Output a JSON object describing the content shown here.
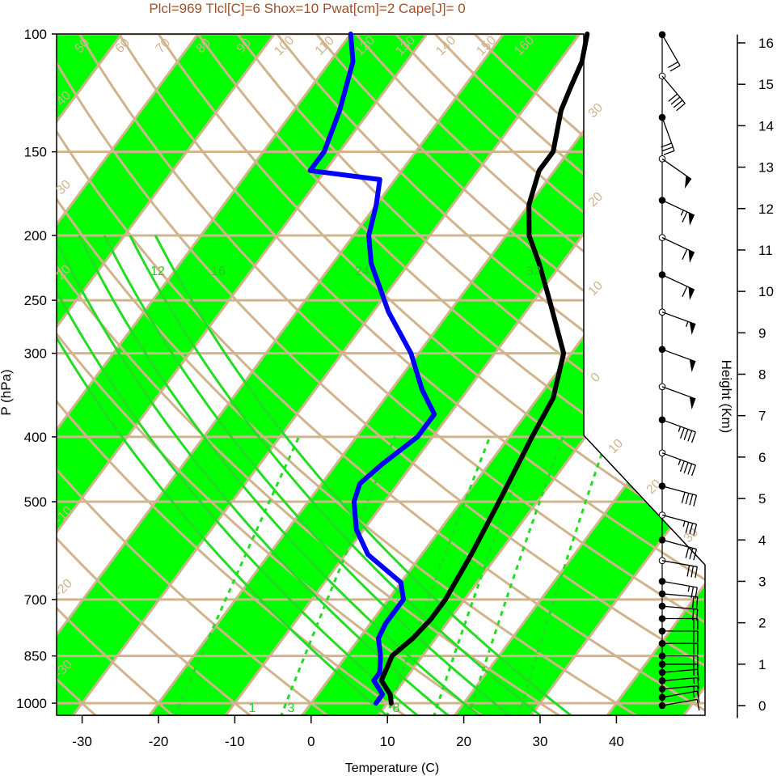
{
  "title": "Plcl=969 Tlcl[C]=6 Shox=10 Pwat[cm]=2 Cape[J]= 0",
  "colors": {
    "temperature": "#000000",
    "dewpoint": "#0000ff",
    "bands": "#00ff00",
    "isobar": "#d2b48c",
    "mixing_ratio": "#22dd22",
    "title": "#a0522d"
  },
  "chart_data": {
    "type": "line",
    "xlabel": "Temperature (C)",
    "ylabel": "P (hPa)",
    "y2label": "Height (Km)",
    "xlim": [
      -34,
      50
    ],
    "ylim": [
      1050,
      100
    ],
    "yscale": "log",
    "x_ticks": [
      "-30",
      "-20",
      "-10",
      "0",
      "10",
      "20",
      "30",
      "40"
    ],
    "y_ticks": [
      "100",
      "150",
      "200",
      "250",
      "300",
      "400",
      "500",
      "700",
      "850",
      "1000"
    ],
    "height_ticks": [
      "0",
      "1",
      "2",
      "3",
      "4",
      "5",
      "6",
      "7",
      "8",
      "9",
      "10",
      "11",
      "12",
      "13",
      "14",
      "15",
      "16"
    ],
    "isotherm_labels": [
      "-40",
      "-30",
      "-20",
      "-10",
      "0",
      "10",
      "20",
      "30",
      "40",
      "50",
      "60",
      "70",
      "80",
      "90",
      "100",
      "110",
      "120",
      "130",
      "140",
      "150",
      "160"
    ],
    "mixing_ratio_labels": [
      "1",
      "3",
      "8",
      "12",
      "16",
      "24",
      "32"
    ],
    "series": [
      {
        "name": "",
        "color": "#000000",
        "pressure": [
          1000,
          970,
          925,
          850,
          800,
          750,
          700,
          600,
          500,
          400,
          350,
          300,
          250,
          220,
          200,
          180,
          160,
          150,
          130,
          120,
          110,
          100
        ],
        "temperature": [
          10.5,
          9.5,
          7.0,
          6.0,
          7.0,
          7.5,
          7.5,
          6.5,
          5.0,
          3.0,
          2.0,
          -1.0,
          -8.0,
          -13.0,
          -17.0,
          -20.0,
          -22.0,
          -22.0,
          -25.0,
          -26.0,
          -27.0,
          -29.0
        ]
      },
      {
        "name": "",
        "color": "#0000ff",
        "pressure": [
          1000,
          970,
          925,
          900,
          850,
          800,
          760,
          700,
          660,
          600,
          550,
          500,
          470,
          440,
          400,
          370,
          340,
          300,
          260,
          220,
          200,
          180,
          165,
          160,
          150,
          130,
          110,
          100
        ],
        "temperature": [
          8.5,
          8.5,
          6.0,
          6.0,
          4.5,
          2.5,
          2.0,
          2.0,
          0.0,
          -7.0,
          -11.0,
          -14.0,
          -15.0,
          -14.0,
          -12.0,
          -12.0,
          -16.0,
          -21.0,
          -28.0,
          -35.0,
          -38.0,
          -40.0,
          -42.0,
          -52.0,
          -52.0,
          -54.0,
          -57.0,
          -60.0
        ]
      }
    ],
    "wind_barbs": {
      "heights_km": [
        0.0,
        0.2,
        0.4,
        0.6,
        0.8,
        1.0,
        1.2,
        1.5,
        1.8,
        2.1,
        2.4,
        2.7,
        3.0,
        3.5,
        4.0,
        4.6,
        5.3,
        6.1,
        6.9,
        7.7,
        8.6,
        9.5,
        10.4,
        11.3,
        12.2,
        13.2,
        14.2,
        15.2,
        16.2
      ],
      "speeds_kt": [
        10,
        15,
        15,
        15,
        15,
        20,
        20,
        20,
        20,
        20,
        20,
        20,
        25,
        30,
        30,
        35,
        40,
        45,
        45,
        50,
        50,
        55,
        60,
        60,
        65,
        50,
        30,
        40,
        20
      ],
      "directions_deg": [
        260,
        260,
        265,
        265,
        265,
        270,
        270,
        270,
        270,
        270,
        275,
        275,
        280,
        280,
        285,
        285,
        285,
        290,
        290,
        290,
        290,
        290,
        295,
        295,
        295,
        305,
        340,
        320,
        330
      ]
    }
  }
}
